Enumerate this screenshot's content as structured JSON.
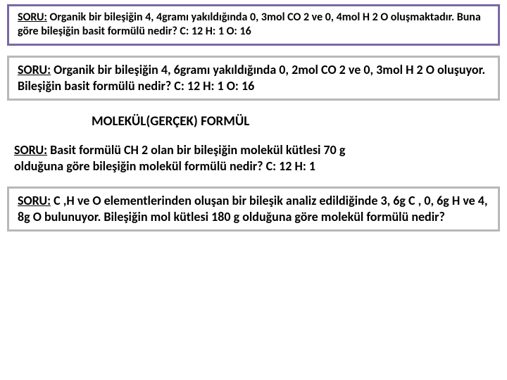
{
  "q1": {
    "label": "SORU:",
    "text": " Organik bir bileşiğin 4, 4gramı yakıldığında 0, 3mol CO 2 ve 0, 4mol H 2 O oluşmaktadır. Buna göre bileşiğin basit formülü nedir? C: 12 H: 1 O: 16"
  },
  "q2": {
    "label": "SORU:",
    "text": " Organik bir bileşiğin 4, 6gramı yakıldığında 0, 2mol CO 2 ve 0, 3mol H 2 O oluşuyor. Bileşiğin basit formülü nedir? C: 12 H: 1 O: 16"
  },
  "heading": "MOLEKÜL(GERÇEK) FORMÜL",
  "q3": {
    "label": "SORU:",
    "lead": " Basit formülü CH 2 olan bir bileşiğin molekül kütlesi 70 g",
    "rest": "olduğuna göre bileşiğin molekül formülü nedir? C: 12 H: 1"
  },
  "q4": {
    "label": "SORU:",
    "text": " C ,H ve O elementlerinden oluşan bir bileşik analiz edildiğinde 3, 6g C , 0, 6g H ve 4, 8g O bulunuyor. Bileşiğin mol kütlesi 180 g olduğuna göre molekül formülü nedir?"
  },
  "colors": {
    "purple_border": "#7a68a6",
    "gray_border": "#b8b8b8",
    "background": "#ffffff",
    "text": "#000000"
  },
  "fonts": {
    "family": "Calibri",
    "heading_size_pt": 19,
    "box_text_size_pt": 18,
    "box1_text_size_pt": 16
  }
}
